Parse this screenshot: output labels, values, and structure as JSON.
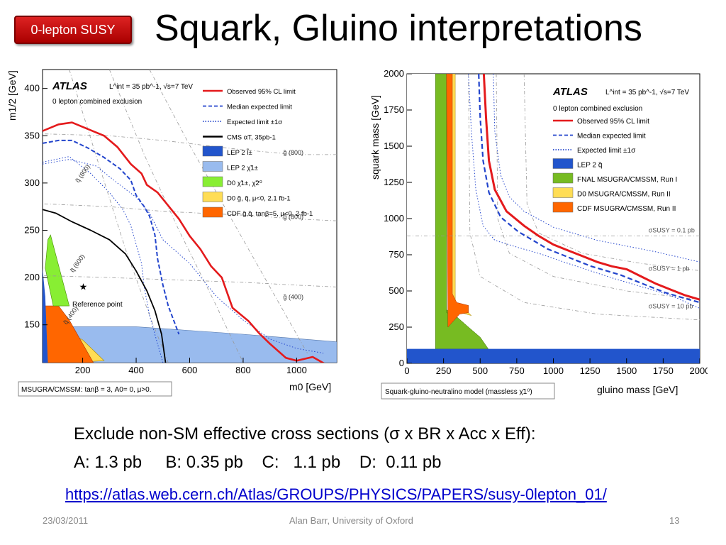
{
  "slide": {
    "badge": "0-lepton SUSY",
    "title": "Squark, Gluino interpretations",
    "line1": "Exclude non-SM effective cross sections (σ x BR x Acc x Eff):",
    "line2": "A: 1.3 pb     B: 0.35 pb    C:   1.1 pb    D:  0.11 pb",
    "link": "https://atlas.web.cern.ch/Atlas/GROUPS/PHYSICS/PAPERS/susy-0lepton_01/",
    "footer_date": "23/03/2011",
    "footer_author": "Alan Barr, University of Oxford",
    "footer_page": "13"
  },
  "chart_data": [
    {
      "type": "line",
      "xlabel": "m0 [GeV]",
      "ylabel": "m1/2 [GeV]",
      "xlim": [
        50,
        1150
      ],
      "ylim": [
        110,
        420
      ],
      "xticks": [
        "200",
        "400",
        "600",
        "800",
        "1000"
      ],
      "yticks": [
        "150",
        "200",
        "250",
        "300",
        "350",
        "400"
      ],
      "experiment": "ATLAS",
      "lumi_text": "L^int = 35 pb^-1, √s=7 TeV",
      "subtitle": "0 lepton combined exclusion",
      "model_box": "MSUGRA/CMSSM: tanβ = 3, A0= 0, μ>0.",
      "reference_point_label": "Reference point",
      "reference_point": [
        200,
        190
      ],
      "contour_labels": [
        "q̃ (800)",
        "q̃ (600)",
        "q̃ (400)",
        "g̃ (800)",
        "g̃ (600)",
        "g̃ (400)"
      ],
      "legend": [
        {
          "label": "Observed 95% CL limit",
          "color": "#e41a1c",
          "style": "solid"
        },
        {
          "label": "Median expected limit",
          "color": "#2244cc",
          "style": "dashed"
        },
        {
          "label": "Expected limit ±1σ",
          "color": "#2244cc",
          "style": "dotted"
        },
        {
          "label": "CMS αT, 35pb-1",
          "color": "#000000",
          "style": "solid"
        },
        {
          "label": "LEP 2 l̃±",
          "color": "#2255cc",
          "style": "fill"
        },
        {
          "label": "LEP 2 χ̃1±",
          "color": "#99bbee",
          "style": "fill"
        },
        {
          "label": "D0 χ̃1±, χ̃2⁰",
          "color": "#88ee33",
          "style": "fill"
        },
        {
          "label": "D0 g̃, q̃, μ<0, 2.1 fb-1",
          "color": "#ffdd55",
          "style": "fill"
        },
        {
          "label": "CDF g̃,q̃, tanβ=5, μ<0, 2 fb-1",
          "color": "#ff6600",
          "style": "fill"
        }
      ],
      "series": [
        {
          "name": "Observed 95% CL limit",
          "x": [
            50,
            110,
            160,
            220,
            280,
            330,
            380,
            420,
            440,
            480,
            520,
            560,
            600,
            640,
            680,
            720,
            760,
            820,
            860,
            900,
            960,
            1000,
            1060,
            1110
          ],
          "y": [
            355,
            362,
            364,
            357,
            350,
            338,
            320,
            310,
            298,
            290,
            276,
            262,
            244,
            230,
            212,
            200,
            168,
            154,
            141,
            130,
            115,
            112,
            116,
            108
          ]
        },
        {
          "name": "Median expected limit",
          "x": [
            50,
            110,
            160,
            220,
            280,
            340,
            380,
            400,
            430,
            450,
            470,
            480,
            500,
            520,
            560
          ],
          "y": [
            342,
            345,
            345,
            337,
            327,
            315,
            303,
            287,
            275,
            265,
            245,
            220,
            192,
            170,
            140
          ]
        },
        {
          "name": "CMS αT, 35pb-1",
          "x": [
            50,
            100,
            160,
            230,
            300,
            360,
            400,
            440,
            470,
            495,
            510
          ],
          "y": [
            272,
            268,
            259,
            250,
            240,
            225,
            207,
            186,
            165,
            140,
            110
          ]
        }
      ]
    },
    {
      "type": "line",
      "xlabel": "gluino mass [GeV]",
      "ylabel": "squark mass [GeV]",
      "xlim": [
        0,
        2000
      ],
      "ylim": [
        0,
        2000
      ],
      "xticks": [
        "0",
        "250",
        "500",
        "750",
        "1000",
        "1250",
        "1500",
        "1750",
        "2000"
      ],
      "yticks": [
        "0",
        "250",
        "500",
        "750",
        "1000",
        "1250",
        "1500",
        "1750",
        "2000"
      ],
      "experiment": "ATLAS",
      "lumi_text": "L^int = 35 pb^-1, √s=7 TeV",
      "subtitle": "0 lepton combined exclusion",
      "model_box": "Squark-gluino-neutralino model (massless χ̃1⁰)",
      "xsec_labels": [
        "σSUSY = 0.1 pb",
        "σSUSY = 1 pb",
        "σSUSY = 10 pb"
      ],
      "legend": [
        {
          "label": "Observed 95% CL limit",
          "color": "#e41a1c",
          "style": "solid"
        },
        {
          "label": "Median expected limit",
          "color": "#2244cc",
          "style": "dashed"
        },
        {
          "label": "Expected limit ±1σ",
          "color": "#2244cc",
          "style": "dotted"
        },
        {
          "label": "LEP 2 q̃",
          "color": "#2255cc",
          "style": "fill"
        },
        {
          "label": "FNAL MSUGRA/CMSSM, Run I",
          "color": "#77bb22",
          "style": "fill"
        },
        {
          "label": "D0 MSUGRA/CMSSM, Run II",
          "color": "#ffdd55",
          "style": "fill"
        },
        {
          "label": "CDF MSUGRA/CMSSM, Run II",
          "color": "#ff6600",
          "style": "fill"
        }
      ],
      "series": [
        {
          "name": "Observed 95% CL limit",
          "x": [
            525,
            540,
            560,
            600,
            680,
            800,
            900,
            1000,
            1100,
            1200,
            1300,
            1400,
            1500,
            1600,
            1700,
            1800,
            1900,
            2000
          ],
          "y": [
            2000,
            1700,
            1400,
            1200,
            1050,
            950,
            880,
            820,
            780,
            740,
            700,
            670,
            650,
            600,
            550,
            510,
            470,
            440
          ]
        },
        {
          "name": "Median expected limit",
          "x": [
            490,
            500,
            520,
            560,
            640,
            760,
            860,
            960,
            1060,
            1160,
            1260,
            1360,
            1460,
            1560,
            1660,
            1760,
            1860,
            2000
          ],
          "y": [
            2000,
            1700,
            1400,
            1180,
            1010,
            910,
            850,
            790,
            750,
            710,
            670,
            640,
            610,
            570,
            530,
            490,
            460,
            420
          ]
        }
      ]
    }
  ]
}
